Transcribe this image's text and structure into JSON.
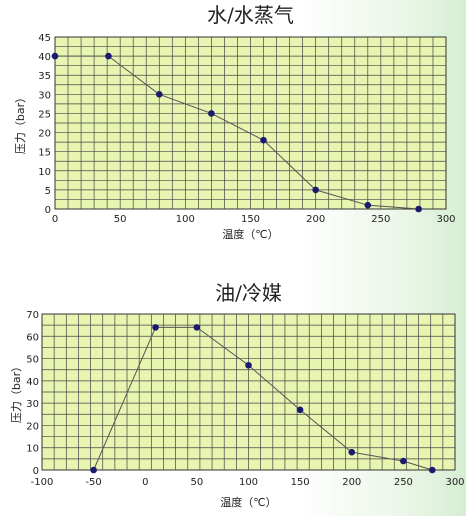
{
  "chart_data": [
    {
      "type": "line",
      "title": "水/水蒸气",
      "xlabel": "温度（℃）",
      "ylabel": "压力（bar）",
      "xlim": [
        0,
        300
      ],
      "ylim": [
        0,
        45
      ],
      "xticks": [
        0,
        50,
        100,
        150,
        200,
        250,
        300
      ],
      "yticks": [
        0,
        5,
        10,
        15,
        20,
        25,
        30,
        35,
        40,
        45
      ],
      "grid": true,
      "background": "#e8f5b0",
      "line_color": "#555555",
      "marker_color": "#1a1a6e",
      "x": [
        0,
        41,
        80,
        120,
        160,
        200,
        240,
        279
      ],
      "y": [
        40,
        40,
        30,
        25,
        18,
        5,
        1,
        0
      ]
    },
    {
      "type": "line",
      "title": "油/冷媒",
      "xlabel": "温度（℃）",
      "ylabel": "压力（bar）",
      "xlim": [
        -100,
        300
      ],
      "ylim": [
        0,
        70
      ],
      "xticks": [
        -100,
        -50,
        0,
        50,
        100,
        150,
        200,
        250,
        300
      ],
      "yticks": [
        0,
        10,
        20,
        30,
        40,
        50,
        60,
        70
      ],
      "grid": true,
      "background": "#e8f5b0",
      "line_color": "#555555",
      "marker_color": "#1a1a6e",
      "x": [
        -50,
        10,
        50,
        100,
        150,
        200,
        250,
        278
      ],
      "y": [
        0,
        64,
        64,
        47,
        27,
        8,
        4,
        0
      ]
    }
  ]
}
